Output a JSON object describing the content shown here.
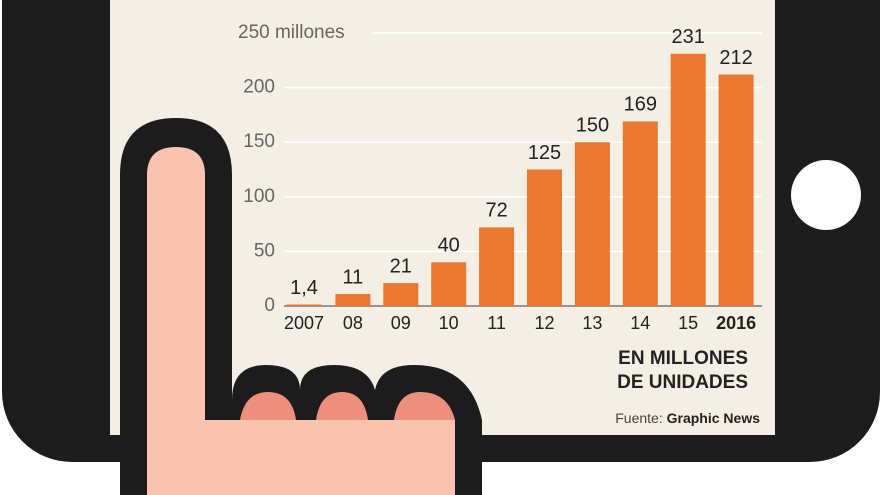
{
  "chart_data": {
    "type": "bar",
    "categories": [
      "2007",
      "08",
      "09",
      "10",
      "11",
      "12",
      "13",
      "14",
      "15",
      "2016"
    ],
    "values": [
      1.4,
      11,
      21,
      40,
      72,
      125,
      150,
      169,
      231,
      212
    ],
    "value_labels": [
      "1,4",
      "11",
      "21",
      "40",
      "72",
      "125",
      "150",
      "169",
      "231",
      "212"
    ],
    "color": "#ec772e",
    "ylim": [
      0,
      250
    ],
    "yticks": [
      0,
      50,
      100,
      150,
      200,
      {
        "value": 250,
        "label": "250 millones"
      }
    ],
    "grid": true,
    "note": [
      "EN MILLONES",
      "DE UNIDADES"
    ],
    "source": {
      "label": "Fuente:",
      "name": "Graphic News"
    }
  }
}
